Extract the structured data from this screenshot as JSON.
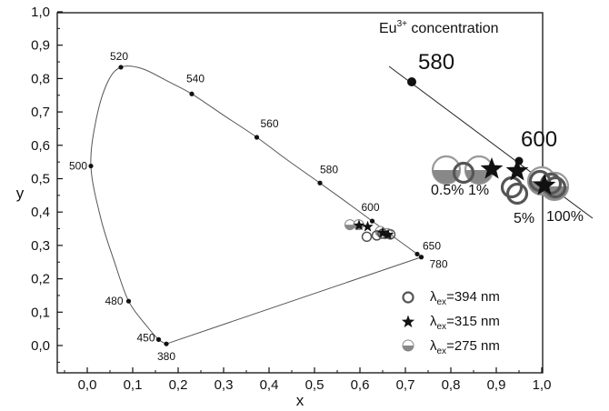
{
  "chart_data": {
    "type": "scatter",
    "title": "",
    "xlabel": "x",
    "ylabel": "y",
    "xlim": [
      -0.12,
      1.0
    ],
    "ylim": [
      -0.12,
      1.0
    ],
    "x_ticks": [
      "0,0",
      "0,1",
      "0,2",
      "0,3",
      "0,4",
      "0,5",
      "0,6",
      "0,7",
      "0,8",
      "0,9",
      "1,0"
    ],
    "y_ticks": [
      "0,0",
      "0,1",
      "0,2",
      "0,3",
      "0,4",
      "0,5",
      "0,6",
      "0,7",
      "0,8",
      "0,9",
      "1,0"
    ],
    "grid": false,
    "spectral_locus": {
      "points": [
        {
          "label": "380",
          "x": 0.174,
          "y": 0.005
        },
        {
          "label": "450",
          "x": 0.157,
          "y": 0.018
        },
        {
          "label": "480",
          "x": 0.091,
          "y": 0.133
        },
        {
          "label": "500",
          "x": 0.008,
          "y": 0.538
        },
        {
          "label": "520",
          "x": 0.074,
          "y": 0.834
        },
        {
          "label": "540",
          "x": 0.23,
          "y": 0.754
        },
        {
          "label": "560",
          "x": 0.373,
          "y": 0.624
        },
        {
          "label": "580",
          "x": 0.512,
          "y": 0.487
        },
        {
          "label": "600",
          "x": 0.627,
          "y": 0.373
        },
        {
          "label": "650",
          "x": 0.726,
          "y": 0.274
        },
        {
          "label": "780",
          "x": 0.735,
          "y": 0.265
        }
      ],
      "curve": [
        [
          0.174,
          0.005
        ],
        [
          0.157,
          0.018
        ],
        [
          0.13,
          0.06
        ],
        [
          0.091,
          0.133
        ],
        [
          0.06,
          0.25
        ],
        [
          0.03,
          0.38
        ],
        [
          0.008,
          0.538
        ],
        [
          0.02,
          0.68
        ],
        [
          0.045,
          0.79
        ],
        [
          0.074,
          0.834
        ],
        [
          0.12,
          0.83
        ],
        [
          0.18,
          0.79
        ],
        [
          0.23,
          0.754
        ],
        [
          0.3,
          0.69
        ],
        [
          0.373,
          0.624
        ],
        [
          0.44,
          0.556
        ],
        [
          0.512,
          0.487
        ],
        [
          0.57,
          0.43
        ],
        [
          0.627,
          0.373
        ],
        [
          0.68,
          0.32
        ],
        [
          0.726,
          0.274
        ],
        [
          0.735,
          0.265
        ]
      ],
      "purple_line": [
        [
          0.735,
          0.265
        ],
        [
          0.174,
          0.005
        ]
      ]
    },
    "series": [
      {
        "name": "λex=394 nm",
        "marker": "open-circle",
        "points": [
          [
            0.615,
            0.326
          ],
          [
            0.637,
            0.33
          ],
          [
            0.65,
            0.335
          ],
          [
            0.667,
            0.333
          ]
        ]
      },
      {
        "name": "λex=315 nm",
        "marker": "star",
        "points": [
          [
            0.598,
            0.36
          ],
          [
            0.617,
            0.356
          ],
          [
            0.65,
            0.338
          ],
          [
            0.662,
            0.332
          ]
        ]
      },
      {
        "name": "λex=275 nm",
        "marker": "half-filled-circle",
        "points": [
          [
            0.578,
            0.362
          ],
          [
            0.597,
            0.362
          ],
          [
            0.645,
            0.342
          ],
          [
            0.66,
            0.336
          ]
        ]
      }
    ],
    "inset": {
      "title": "Eu",
      "title_sup": "3+",
      "title_rest": " concentration",
      "wavelength_labels": [
        "580",
        "600"
      ],
      "concentration_labels": [
        "0.5%",
        "1%",
        "5%",
        "100%"
      ]
    },
    "legend": {
      "placement": "bottom-right",
      "entries": [
        {
          "symbol": "λ",
          "sub": "ex",
          "text": "=394 nm",
          "marker": "open-circle"
        },
        {
          "symbol": "λ",
          "sub": "ex",
          "text": "=315 nm",
          "marker": "star"
        },
        {
          "symbol": "λ",
          "sub": "ex",
          "text": "=275 nm",
          "marker": "half-filled-circle"
        }
      ]
    },
    "colors": {
      "axis": "#111111",
      "curve": "#555555",
      "marker_stroke": "#555555",
      "marker_fill": "#777777",
      "point": "#111111"
    }
  }
}
